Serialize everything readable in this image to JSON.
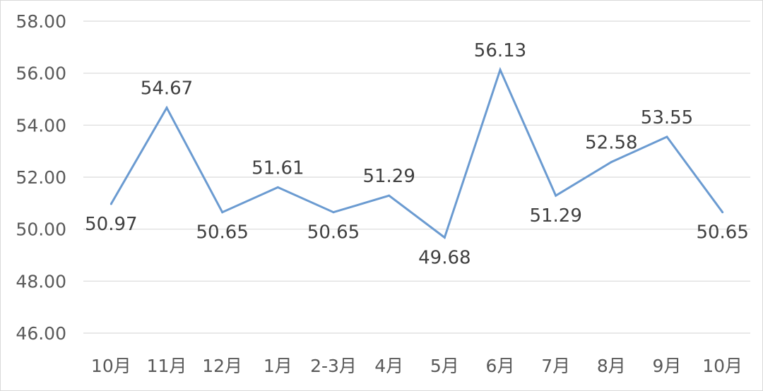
{
  "chart_data": {
    "type": "line",
    "categories": [
      "10月",
      "11月",
      "12月",
      "1月",
      "2-3月",
      "4月",
      "5月",
      "6月",
      "7月",
      "8月",
      "9月",
      "10月"
    ],
    "series": [
      {
        "values": [
          50.97,
          54.67,
          50.65,
          51.61,
          50.65,
          51.29,
          49.68,
          56.13,
          51.29,
          52.58,
          53.55,
          50.65
        ],
        "color": "#6b9bd1"
      }
    ],
    "data_labels": [
      "50.97",
      "54.67",
      "50.65",
      "51.61",
      "50.65",
      "51.29",
      "49.68",
      "56.13",
      "51.29",
      "52.58",
      "53.55",
      "50.65"
    ],
    "label_positions": [
      "below",
      "above",
      "below",
      "above",
      "below",
      "above",
      "below",
      "above",
      "below",
      "above",
      "above",
      "below"
    ],
    "yticks": [
      "58.00",
      "56.00",
      "54.00",
      "52.00",
      "50.00",
      "48.00",
      "46.00"
    ],
    "ylim": [
      46,
      58
    ],
    "grid": true,
    "legend": "none"
  }
}
